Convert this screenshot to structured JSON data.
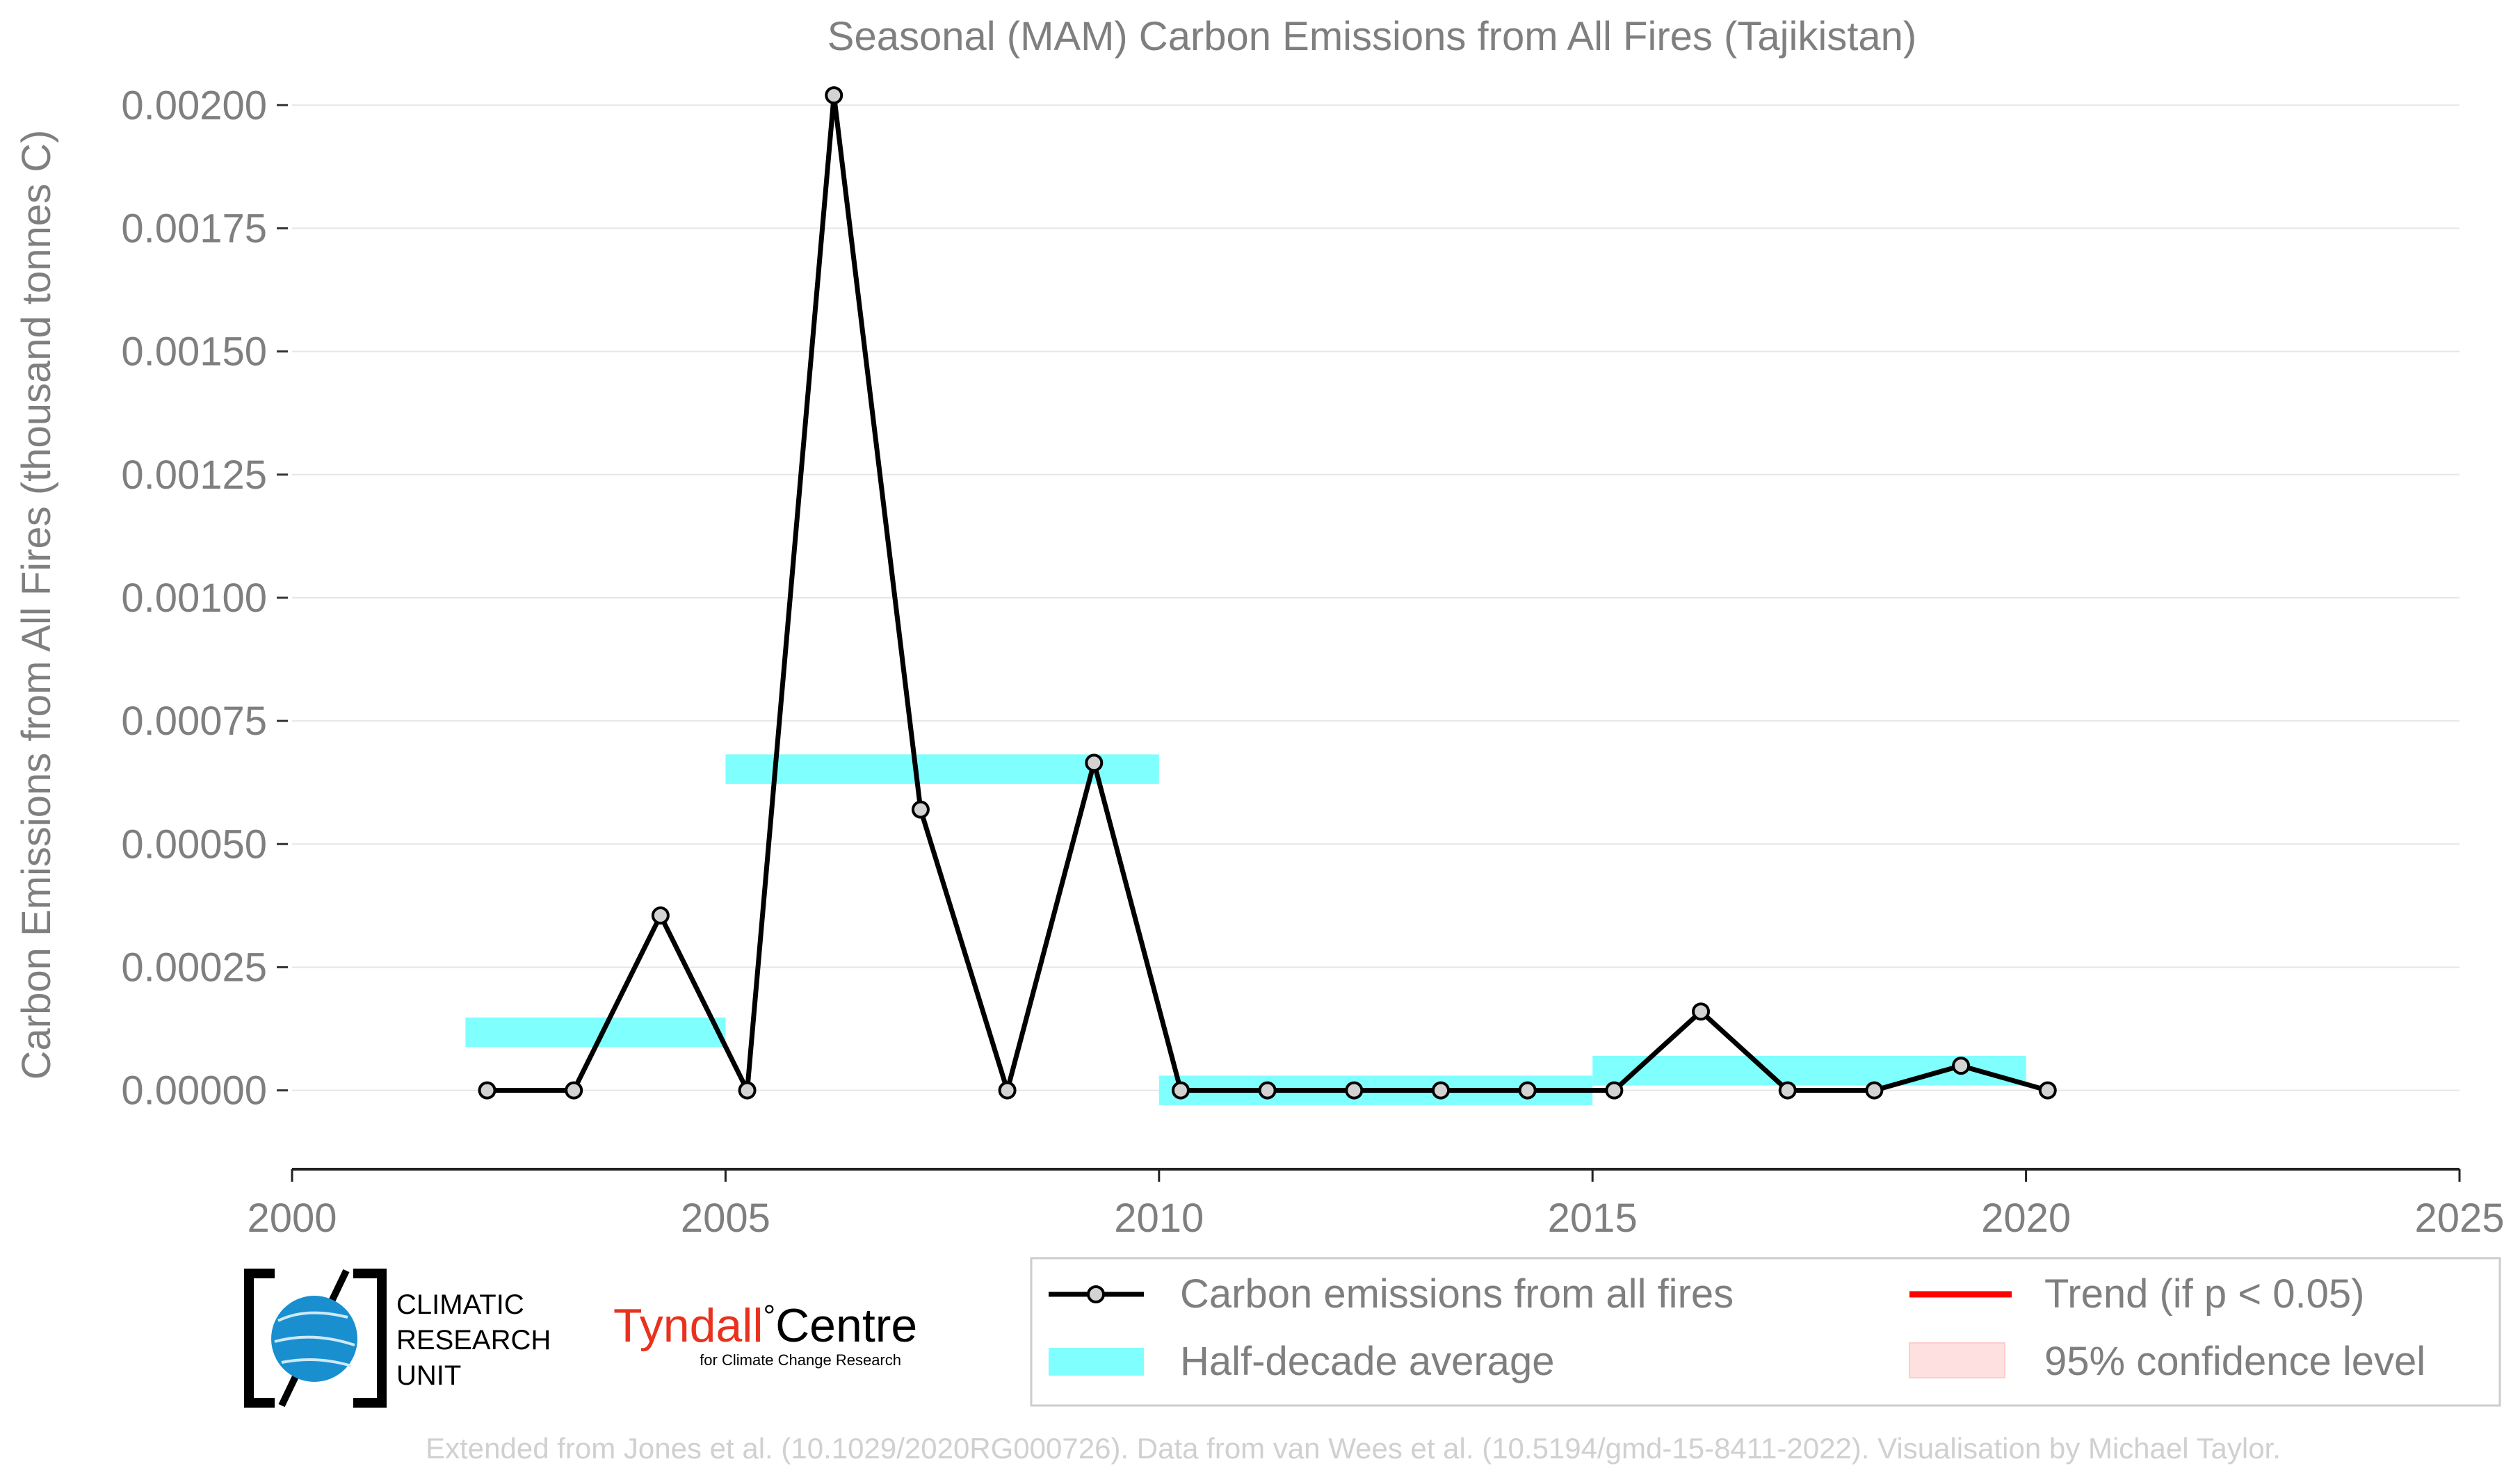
{
  "chart_data": {
    "type": "line",
    "title": "Seasonal (MAM) Carbon Emissions from All Fires (Tajikistan)",
    "xlabel": "",
    "ylabel": "Carbon Emissions from All Fires (thousand tonnes C)",
    "xlim": [
      2000,
      2025
    ],
    "ylim": [
      -0.00016,
      0.00203
    ],
    "x_ticks": [
      2000,
      2005,
      2010,
      2015,
      2020,
      2025
    ],
    "y_ticks": [
      0.0,
      0.00025,
      0.0005,
      0.00075,
      0.001,
      0.00125,
      0.0015,
      0.00175,
      0.002
    ],
    "x_tick_labels": [
      "2000",
      "2005",
      "2010",
      "2015",
      "2020",
      "2025"
    ],
    "y_tick_labels": [
      "0.00000",
      "0.00025",
      "0.00050",
      "0.00075",
      "0.00100",
      "0.00125",
      "0.00150",
      "0.00175",
      "0.00200"
    ],
    "grid": "horizontal",
    "legend_position": "bottom-right",
    "series": [
      {
        "name": "Carbon emissions from all fires",
        "color": "#000000",
        "marker_fill": "#d3d3d3",
        "x": [
          2002.25,
          2003.25,
          2004.25,
          2005.25,
          2006.25,
          2007.25,
          2008.25,
          2009.25,
          2010.25,
          2011.25,
          2012.25,
          2013.25,
          2014.25,
          2015.25,
          2016.25,
          2017.25,
          2018.25,
          2019.25,
          2020.25
        ],
        "values": [
          0.0,
          0.0,
          0.000355,
          0.0,
          0.00202,
          0.00057,
          0.0,
          0.000665,
          0.0,
          0.0,
          0.0,
          0.0,
          0.0,
          0.0,
          0.00016,
          0.0,
          0.0,
          5e-05,
          0.0
        ]
      }
    ],
    "half_decade_average": {
      "name": "Half-decade average",
      "color": "#80ffff",
      "segments": [
        {
          "x_start": 2002,
          "x_end": 2005,
          "value": 0.000118
        },
        {
          "x_start": 2005,
          "x_end": 2010,
          "value": 0.000652
        },
        {
          "x_start": 2010,
          "x_end": 2015,
          "value": 0.0
        },
        {
          "x_start": 2015,
          "x_end": 2020,
          "value": 4e-05
        }
      ]
    },
    "trend": {
      "name": "Trend (if p < 0.05)",
      "color": "#ff0000"
    },
    "confidence": {
      "name": "95% confidence level",
      "color": "#ffe0e0"
    }
  },
  "logos": {
    "cru": {
      "line1": "CLIMATIC",
      "line2": "RESEARCH",
      "line3": "UNIT"
    },
    "tyndall": {
      "name_part1": "Tyndall",
      "degree": "°",
      "name_part2": "Centre",
      "subtitle": "for Climate Change Research"
    }
  },
  "footer": {
    "credit": "Extended from Jones et al. (10.1029/2020RG000726). Data from van Wees et al. (10.5194/gmd-15-8411-2022). Visualisation by Michael Taylor."
  },
  "colors": {
    "axis_text": "#7f7f7f",
    "grid": "#e6e6e6",
    "footer_text": "#d0d0d0",
    "tyndall_red": "#e8321e"
  }
}
